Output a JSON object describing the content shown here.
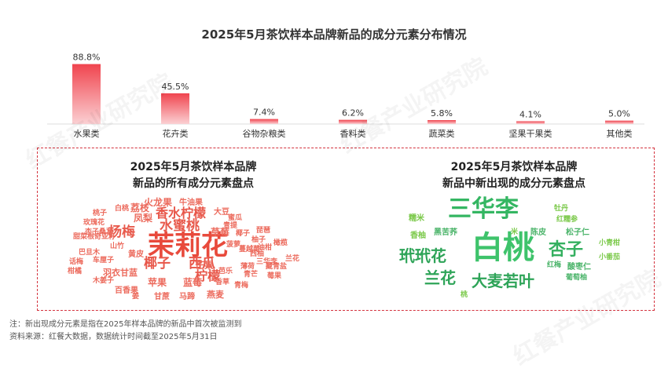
{
  "title": "2025年5月茶饮样本品牌新品的成分元素分布情况",
  "watermark": "红餐产业研究院",
  "chart_data": {
    "type": "bar",
    "categories": [
      "水果类",
      "花卉类",
      "谷物杂粮类",
      "香料类",
      "蔬菜类",
      "坚果干果类",
      "其他类"
    ],
    "values": [
      88.8,
      45.5,
      7.4,
      6.2,
      5.8,
      4.1,
      5.0
    ],
    "value_labels": [
      "88.8%",
      "45.5%",
      "7.4%",
      "6.2%",
      "5.8%",
      "4.1%",
      "5.0%"
    ],
    "ylim": [
      0,
      100
    ],
    "grid": false,
    "bar_color": "#f0444e"
  },
  "wordcloud_left": {
    "title_line1": "2025年5月茶饮样本品牌",
    "title_line2": "新品的所有成分元素盘点",
    "words": [
      {
        "text": "茉莉花",
        "size": 34,
        "color": "#e84a3c"
      },
      {
        "text": "杨梅",
        "size": 17,
        "color": "#e85a4c"
      },
      {
        "text": "水蜜桃",
        "size": 17,
        "color": "#e85a4c"
      },
      {
        "text": "香水柠檬",
        "size": 16,
        "color": "#e8574a"
      },
      {
        "text": "椰子",
        "size": 17,
        "color": "#e8574a"
      },
      {
        "text": "西瓜",
        "size": 17,
        "color": "#e8574a"
      },
      {
        "text": "柠檬",
        "size": 16,
        "color": "#e8574a"
      },
      {
        "text": "火龙果",
        "size": 12,
        "color": "#ec6a5c"
      },
      {
        "text": "荔枝",
        "size": 12,
        "color": "#ec6a5c"
      },
      {
        "text": "凤梨",
        "size": 12,
        "color": "#ec6a5c"
      },
      {
        "text": "牛油果",
        "size": 10,
        "color": "#ec6a5c"
      },
      {
        "text": "大豆",
        "size": 10,
        "color": "#ec6a5c"
      },
      {
        "text": "蜜瓜",
        "size": 9,
        "color": "#ec6a5c"
      },
      {
        "text": "桃子",
        "size": 9,
        "color": "#ec6a5c"
      },
      {
        "text": "白桃",
        "size": 9,
        "color": "#ec6a5c"
      },
      {
        "text": "玫瑰花",
        "size": 9,
        "color": "#ec6a5c"
      },
      {
        "text": "青提",
        "size": 9,
        "color": "#ec6a5c"
      },
      {
        "text": "杏子桑葚",
        "size": 9,
        "color": "#ec6a5c"
      },
      {
        "text": "甜菜根",
        "size": 9,
        "color": "#ec6a5c"
      },
      {
        "text": "奇亚籽",
        "size": 9,
        "color": "#ec6a5c"
      },
      {
        "text": "草莓",
        "size": 12,
        "color": "#ec6a5c"
      },
      {
        "text": "椰子",
        "size": 9,
        "color": "#ec6a5c"
      },
      {
        "text": "琵琶",
        "size": 9,
        "color": "#ec6a5c"
      },
      {
        "text": "山竹",
        "size": 9,
        "color": "#ec6a5c"
      },
      {
        "text": "黄皮",
        "size": 10,
        "color": "#ec6a5c"
      },
      {
        "text": "柚子",
        "size": 9,
        "color": "#ec6a5c"
      },
      {
        "text": "菠萝",
        "size": 9,
        "color": "#ec6a5c"
      },
      {
        "text": "蔓越莓",
        "size": 9,
        "color": "#ec6a5c"
      },
      {
        "text": "油柑",
        "size": 9,
        "color": "#ec6a5c"
      },
      {
        "text": "巴旦木",
        "size": 9,
        "color": "#ec6a5c"
      },
      {
        "text": "西柚",
        "size": 9,
        "color": "#ec6a5c"
      },
      {
        "text": "三华李",
        "size": 9,
        "color": "#ec6a5c"
      },
      {
        "text": "橄榄",
        "size": 9,
        "color": "#ec6a5c"
      },
      {
        "text": "话梅",
        "size": 9,
        "color": "#ec6a5c"
      },
      {
        "text": "车厘子",
        "size": 9,
        "color": "#ec6a5c"
      },
      {
        "text": "薄荷",
        "size": 9,
        "color": "#ec6a5c"
      },
      {
        "text": "藏青盐",
        "size": 9,
        "color": "#ec6a5c"
      },
      {
        "text": "兰花",
        "size": 9,
        "color": "#ec6a5c"
      },
      {
        "text": "柑橘",
        "size": 9,
        "color": "#ec6a5c"
      },
      {
        "text": "羽衣甘蓝",
        "size": 11,
        "color": "#ec6a5c"
      },
      {
        "text": "芒果",
        "size": 12,
        "color": "#ec6a5c"
      },
      {
        "text": "芭乐",
        "size": 9,
        "color": "#ec6a5c"
      },
      {
        "text": "青芒",
        "size": 9,
        "color": "#ec6a5c"
      },
      {
        "text": "莓果",
        "size": 9,
        "color": "#ec6a5c"
      },
      {
        "text": "木姜子",
        "size": 9,
        "color": "#ec6a5c"
      },
      {
        "text": "苹果",
        "size": 12,
        "color": "#ec6a5c"
      },
      {
        "text": "蓝莓",
        "size": 12,
        "color": "#ec6a5c"
      },
      {
        "text": "香草",
        "size": 9,
        "color": "#ec6a5c"
      },
      {
        "text": "青梅",
        "size": 9,
        "color": "#ec6a5c"
      },
      {
        "text": "百香果",
        "size": 10,
        "color": "#ec6a5c"
      },
      {
        "text": "姜",
        "size": 9,
        "color": "#ec6a5c"
      },
      {
        "text": "甘蔗",
        "size": 10,
        "color": "#ec6a5c"
      },
      {
        "text": "马蹄",
        "size": 10,
        "color": "#ec6a5c"
      },
      {
        "text": "燕麦",
        "size": 11,
        "color": "#ec6a5c"
      }
    ]
  },
  "wordcloud_right": {
    "title_line1": "2025年5月茶饮样本品牌",
    "title_line2": "新品中新出现的成分元素盘点",
    "words": [
      {
        "text": "白桃",
        "size": 40,
        "color": "#3ec36b"
      },
      {
        "text": "三华李",
        "size": 30,
        "color": "#34b662"
      },
      {
        "text": "玳玳花",
        "size": 20,
        "color": "#2ea458"
      },
      {
        "text": "杏子",
        "size": 22,
        "color": "#35b060"
      },
      {
        "text": "兰花",
        "size": 20,
        "color": "#2ea458"
      },
      {
        "text": "大麦若叶",
        "size": 20,
        "color": "#2ea458"
      },
      {
        "text": "糯米",
        "size": 10,
        "color": "#7bc94a"
      },
      {
        "text": "黑苦荞",
        "size": 10,
        "color": "#4bb46a"
      },
      {
        "text": "香柚",
        "size": 10,
        "color": "#7bc94a"
      },
      {
        "text": "米",
        "size": 9,
        "color": "#7bc94a"
      },
      {
        "text": "牡丹",
        "size": 9,
        "color": "#7bc94a"
      },
      {
        "text": "红糯参",
        "size": 9,
        "color": "#7bc94a"
      },
      {
        "text": "陈皮",
        "size": 10,
        "color": "#4bb46a"
      },
      {
        "text": "松子仁",
        "size": 10,
        "color": "#4bb46a"
      },
      {
        "text": "小青柑",
        "size": 9,
        "color": "#7bc94a"
      },
      {
        "text": "小番茄",
        "size": 9,
        "color": "#7bc94a"
      },
      {
        "text": "红梅",
        "size": 9,
        "color": "#4bb46a"
      },
      {
        "text": "酸枣仁",
        "size": 10,
        "color": "#4bb46a"
      },
      {
        "text": "葡萄柚",
        "size": 9,
        "color": "#4bb46a"
      },
      {
        "text": "桃",
        "size": 9,
        "color": "#7bc94a"
      }
    ]
  },
  "notes": {
    "line1": "注：新出现成分元素是指在2025年样本品牌的新品中首次被监测到",
    "line2": "资料来源：红餐大数据，数据统计时间截至2025年5月31日"
  }
}
